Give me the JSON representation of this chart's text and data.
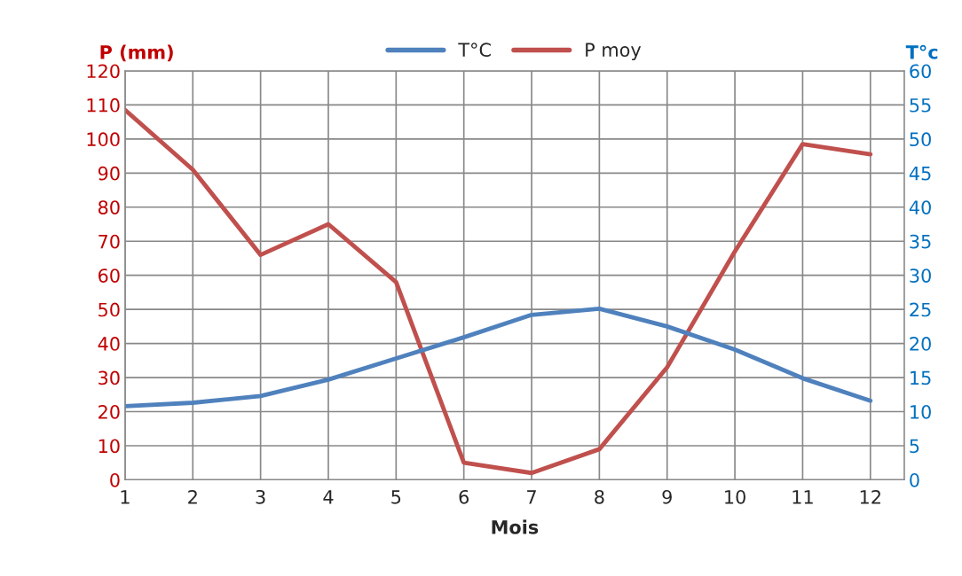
{
  "chart_data": {
    "type": "line",
    "xlabel": "Mois",
    "ylabel": "P (mm)",
    "y2label": "T°c",
    "x": [
      1,
      2,
      3,
      4,
      5,
      6,
      7,
      8,
      9,
      10,
      11,
      12
    ],
    "series": [
      {
        "name": "T°C",
        "color": "#4f81bd",
        "axis": "y2",
        "values": [
          10.8,
          11.3,
          12.3,
          14.7,
          17.8,
          20.9,
          24.2,
          25.1,
          22.5,
          19.1,
          14.9,
          11.6
        ]
      },
      {
        "name": "P moy",
        "color": "#c0504d",
        "values": [
          108.5,
          91,
          66,
          75,
          58,
          5,
          2,
          9,
          33,
          67,
          98.5,
          95.5
        ]
      }
    ],
    "xlim": [
      1,
      12.5
    ],
    "xticks": [
      1,
      2,
      3,
      4,
      5,
      6,
      7,
      8,
      9,
      10,
      11,
      12
    ],
    "ylim": [
      0,
      120
    ],
    "yticks": [
      0,
      10,
      20,
      30,
      40,
      50,
      60,
      70,
      80,
      90,
      100,
      110,
      120
    ],
    "y2lim": [
      0,
      60
    ],
    "y2ticks": [
      0,
      5,
      10,
      15,
      20,
      25,
      30,
      35,
      40,
      45,
      50,
      55,
      60
    ],
    "grid": true,
    "legend": "top",
    "marker": "none",
    "line_style": "solid"
  }
}
